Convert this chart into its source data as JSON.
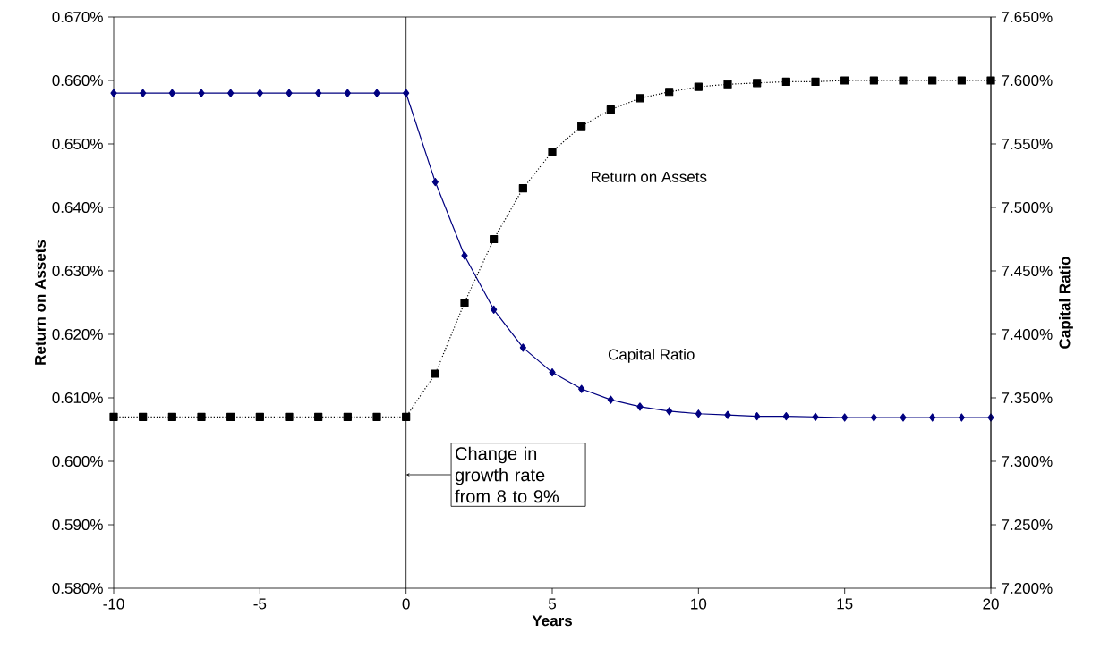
{
  "chart_data": {
    "type": "line",
    "xlabel": "Years",
    "ylabel": "Return on Assets",
    "y2label": "Capital Ratio",
    "x": [
      -10,
      -9,
      -8,
      -7,
      -6,
      -5,
      -4,
      -3,
      -2,
      -1,
      0,
      1,
      2,
      3,
      4,
      5,
      6,
      7,
      8,
      9,
      10,
      11,
      12,
      13,
      14,
      15,
      16,
      17,
      18,
      19,
      20
    ],
    "series": [
      {
        "color": "#000080",
        "marker": "diamond",
        "line_style": "solid",
        "values": [
          0.658,
          0.658,
          0.658,
          0.658,
          0.658,
          0.658,
          0.658,
          0.658,
          0.658,
          0.658,
          0.658,
          0.644,
          0.6324,
          0.6239,
          0.6179,
          0.614,
          0.6114,
          0.6097,
          0.6086,
          0.6079,
          0.6075,
          0.6073,
          0.6071,
          0.6071,
          0.607,
          0.6069,
          0.6069,
          0.6069,
          0.6069,
          0.6069,
          0.6069
        ]
      },
      {
        "color": "#000000",
        "marker": "square",
        "line_style": "dotted",
        "axis": "y2",
        "values": [
          7.335,
          7.335,
          7.335,
          7.335,
          7.335,
          7.335,
          7.335,
          7.335,
          7.335,
          7.335,
          7.335,
          7.369,
          7.425,
          7.475,
          7.515,
          7.544,
          7.564,
          7.577,
          7.586,
          7.591,
          7.595,
          7.597,
          7.598,
          7.599,
          7.599,
          7.6,
          7.6,
          7.6,
          7.6,
          7.6,
          7.6
        ]
      }
    ],
    "xlim": [
      -10,
      20
    ],
    "xticks": [
      -10,
      -5,
      0,
      5,
      10,
      15,
      20
    ],
    "ylim": [
      0.58,
      0.67
    ],
    "yticks": [
      {
        "value": 0.58,
        "label": "0.580%"
      },
      {
        "value": 0.59,
        "label": "0.590%"
      },
      {
        "value": 0.6,
        "label": "0.600%"
      },
      {
        "value": 0.61,
        "label": "0.610%"
      },
      {
        "value": 0.62,
        "label": "0.620%"
      },
      {
        "value": 0.63,
        "label": "0.630%"
      },
      {
        "value": 0.64,
        "label": "0.640%"
      },
      {
        "value": 0.65,
        "label": "0.650%"
      },
      {
        "value": 0.66,
        "label": "0.660%"
      },
      {
        "value": 0.67,
        "label": "0.670%"
      }
    ],
    "y2lim": [
      7.2,
      7.65
    ],
    "y2ticks": [
      {
        "value": 7.2,
        "label": "7.200%"
      },
      {
        "value": 7.25,
        "label": "7.250%"
      },
      {
        "value": 7.3,
        "label": "7.300%"
      },
      {
        "value": 7.35,
        "label": "7.350%"
      },
      {
        "value": 7.4,
        "label": "7.400%"
      },
      {
        "value": 7.45,
        "label": "7.450%"
      },
      {
        "value": 7.5,
        "label": "7.500%"
      },
      {
        "value": 7.55,
        "label": "7.550%"
      },
      {
        "value": 7.6,
        "label": "7.600%"
      },
      {
        "value": 7.65,
        "label": "7.650%"
      }
    ],
    "ref_lines": [
      {
        "axis": "x",
        "value": 0,
        "label": "Change in growth rate from 8 to 9%"
      }
    ],
    "annotations": [
      "Return on Assets",
      "Capital Ratio"
    ],
    "grid": false
  }
}
